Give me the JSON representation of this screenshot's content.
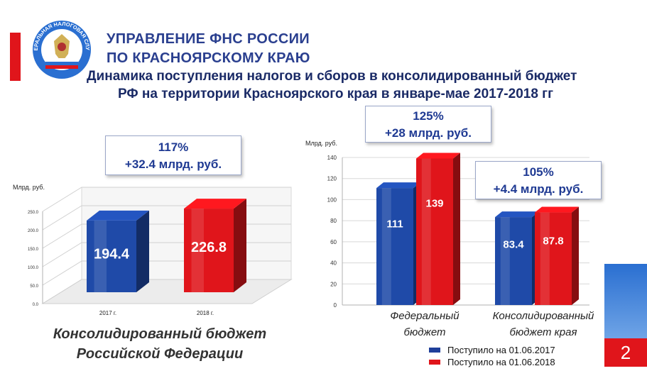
{
  "header": {
    "org_line1": "УПРАВЛЕНИЕ ФНС РОССИИ",
    "org_line2": "ПО КРАСНОЯРСКОМУ  КРАЮ",
    "title_line1": "Динамика поступления налогов и сборов в консолидированный бюджет",
    "title_line2": "РФ на территории  Красноярского края в январе-мае 2017-2018 гг",
    "emblem_ring_text": "ФЕДЕРАЛЬНАЯ НАЛОГОВАЯ СЛУЖБА"
  },
  "left_panel": {
    "callout_line1": "117%",
    "callout_line2": "+32.4 млрд. руб.",
    "caption_line1": "Консолидированный бюджет",
    "caption_line2": "Российской Федерации"
  },
  "right_panel": {
    "callout_fed_line1": "125%",
    "callout_fed_line2": "+28 млрд. руб.",
    "callout_reg_line1": "105%",
    "callout_reg_line2": "+4.4 млрд. руб."
  },
  "legend": [
    {
      "label": "Поступило на 01.06.2017",
      "color": "#1f3f9a"
    },
    {
      "label": "Поступило на 01.06.2018",
      "color": "#e0151b"
    }
  ],
  "page_number": "2",
  "colors": {
    "blue": "#1f4aa8",
    "red": "#e0151b",
    "dark_blue": "#1a2a66",
    "accent_blue": "#2a6fd1"
  },
  "chart_data": [
    {
      "type": "bar",
      "ylabel": "Млрд. руб.",
      "categories": [
        "2017 г.",
        "2018 г."
      ],
      "values": [
        194.4,
        226.8
      ],
      "value_labels": [
        "194.4",
        "226.8"
      ],
      "ylim": [
        0,
        250
      ],
      "ytick_labels": [
        "0.0",
        "50.0",
        "100.0",
        "150.0",
        "200.0",
        "250.0"
      ],
      "grid": true
    },
    {
      "type": "bar",
      "ylabel": "Млрд. руб.",
      "categories": [
        "Федеральный\nбюджет",
        "Консолидированный\nбюджет края"
      ],
      "series": [
        {
          "values": [
            111,
            83.4
          ],
          "value_labels": [
            "111",
            "83.4"
          ]
        },
        {
          "values": [
            139,
            87.8
          ],
          "value_labels": [
            "139",
            "87.8"
          ]
        }
      ],
      "ylim": [
        0,
        140
      ],
      "ytick_labels": [
        "0",
        "20",
        "40",
        "60",
        "80",
        "100",
        "120",
        "140"
      ],
      "grid": true
    }
  ]
}
